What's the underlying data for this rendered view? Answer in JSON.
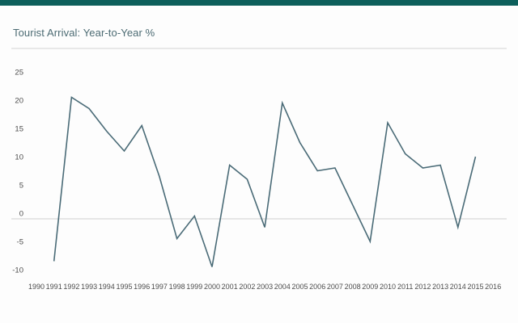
{
  "window": {
    "background": "#fdfdfd",
    "accent_bar_color": "#0d5f5b"
  },
  "header": {
    "title": "Tourist Arrival: Year-to-Year %",
    "title_color": "#4c6b73",
    "divider_color": "#e8e8e8"
  },
  "chart_data": {
    "type": "line",
    "title": "Tourist Arrival: Year-to-Year %",
    "xlabel": "",
    "ylabel": "",
    "categories": [
      "1990",
      "1991",
      "1992",
      "1993",
      "1994",
      "1995",
      "1996",
      "1997",
      "1998",
      "1999",
      "2000",
      "2001",
      "2002",
      "2003",
      "2004",
      "2005",
      "2006",
      "2007",
      "2008",
      "2009",
      "2010",
      "2011",
      "2012",
      "2013",
      "2014",
      "2015",
      "2016"
    ],
    "x": [
      1991,
      1992,
      1993,
      1994,
      1995,
      1996,
      1997,
      1998,
      1999,
      2000,
      2001,
      2002,
      2003,
      2004,
      2005,
      2006,
      2007,
      2008,
      2009,
      2010,
      2011,
      2012,
      2013,
      2014,
      2015
    ],
    "values": [
      -7.5,
      21.5,
      19.5,
      15.5,
      12,
      16.5,
      7.5,
      -3.5,
      0.5,
      -8.5,
      9.5,
      7,
      -1.5,
      20.5,
      13.5,
      8.5,
      9,
      2.5,
      -4,
      17,
      11.5,
      9,
      9.5,
      -1.5,
      11
    ],
    "y_ticks": [
      25,
      20,
      15,
      10,
      5,
      0,
      -5,
      -10
    ],
    "ylim": [
      -10,
      25
    ],
    "grid": "zero-line-only",
    "legend": "none",
    "line_color": "#4a6b77",
    "zero_line_color": "#d9d9d9",
    "tick_label_color": "#4d4d4d"
  }
}
